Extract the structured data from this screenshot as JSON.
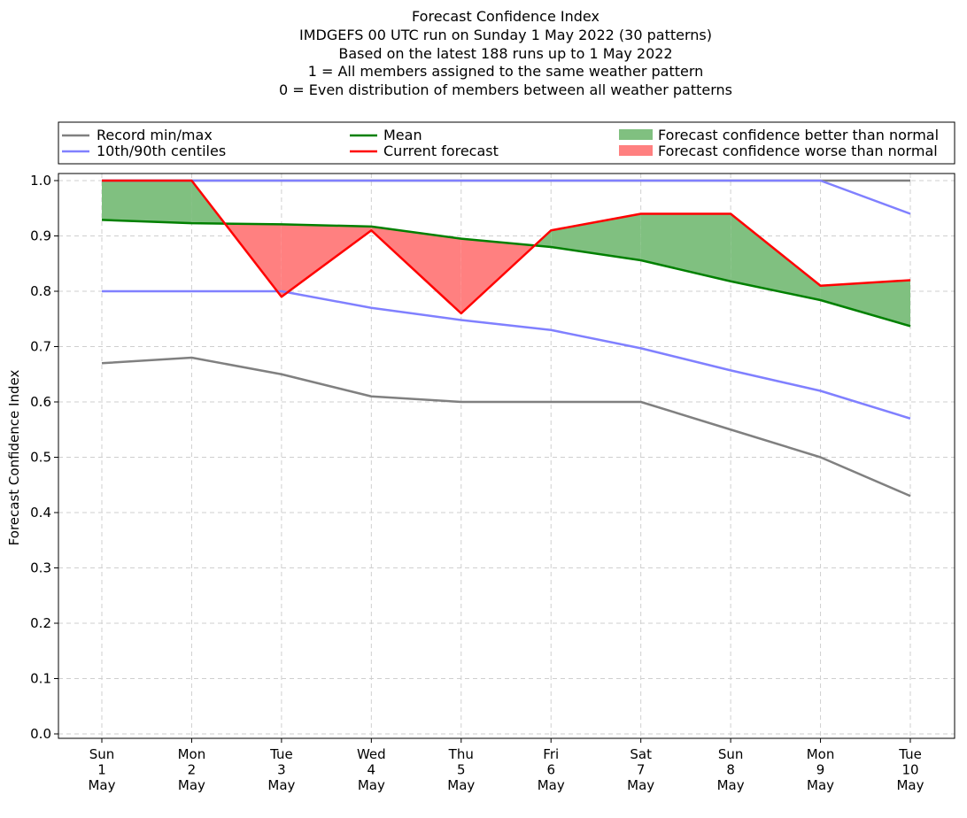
{
  "chart_data": {
    "type": "line",
    "title_lines": [
      "Forecast Confidence Index",
      "IMDGEFS 00 UTC run on Sunday 1 May 2022 (30 patterns)",
      "Based on the latest 188 runs up to 1 May 2022",
      "1 = All members assigned to the same weather pattern",
      "0 = Even distribution of members between all weather patterns"
    ],
    "ylabel": "Forecast Confidence Index",
    "ylim": [
      0,
      1.0
    ],
    "yticks": [
      "0.0",
      "0.1",
      "0.2",
      "0.3",
      "0.4",
      "0.5",
      "0.6",
      "0.7",
      "0.8",
      "0.9",
      "1.0"
    ],
    "ytick_values": [
      0,
      0.1,
      0.2,
      0.3,
      0.4,
      0.5,
      0.6,
      0.7,
      0.8,
      0.9,
      1.0
    ],
    "categories": [
      [
        "Sun",
        "1",
        "May"
      ],
      [
        "Mon",
        "2",
        "May"
      ],
      [
        "Tue",
        "3",
        "May"
      ],
      [
        "Wed",
        "4",
        "May"
      ],
      [
        "Thu",
        "5",
        "May"
      ],
      [
        "Fri",
        "6",
        "May"
      ],
      [
        "Sat",
        "7",
        "May"
      ],
      [
        "Sun",
        "8",
        "May"
      ],
      [
        "Mon",
        "9",
        "May"
      ],
      [
        "Tue",
        "10",
        "May"
      ]
    ],
    "grid": true,
    "legend_position": "top",
    "series": [
      {
        "name": "Record min/max",
        "role": "record_min",
        "color": "#808080",
        "values": [
          0.67,
          0.68,
          0.65,
          0.61,
          0.6,
          0.6,
          0.6,
          0.55,
          0.5,
          0.43
        ]
      },
      {
        "role": "record_max",
        "color": "#808080",
        "values": [
          1.0,
          1.0,
          1.0,
          1.0,
          1.0,
          1.0,
          1.0,
          1.0,
          1.0,
          1.0
        ]
      },
      {
        "name": "10th/90th centiles",
        "role": "p10",
        "color": "#8080ff",
        "values": [
          0.8,
          0.8,
          0.8,
          0.77,
          0.748,
          0.73,
          0.697,
          0.657,
          0.62,
          0.57
        ]
      },
      {
        "role": "p90",
        "color": "#8080ff",
        "values": [
          1.0,
          1.0,
          1.0,
          1.0,
          1.0,
          1.0,
          1.0,
          1.0,
          1.0,
          0.94
        ]
      },
      {
        "name": "Mean",
        "role": "mean",
        "color": "#008000",
        "values": [
          0.929,
          0.923,
          0.921,
          0.917,
          0.895,
          0.88,
          0.856,
          0.818,
          0.784,
          0.737
        ]
      },
      {
        "name": "Current forecast",
        "role": "current",
        "color": "#ff0000",
        "values": [
          1.0,
          1.0,
          0.79,
          0.91,
          0.76,
          0.91,
          0.94,
          0.94,
          0.81,
          0.82
        ]
      }
    ],
    "fills": [
      {
        "name": "Forecast confidence better than normal",
        "color": "#80c080"
      },
      {
        "name": "Forecast confidence worse than normal",
        "color": "#ff8080"
      }
    ]
  }
}
